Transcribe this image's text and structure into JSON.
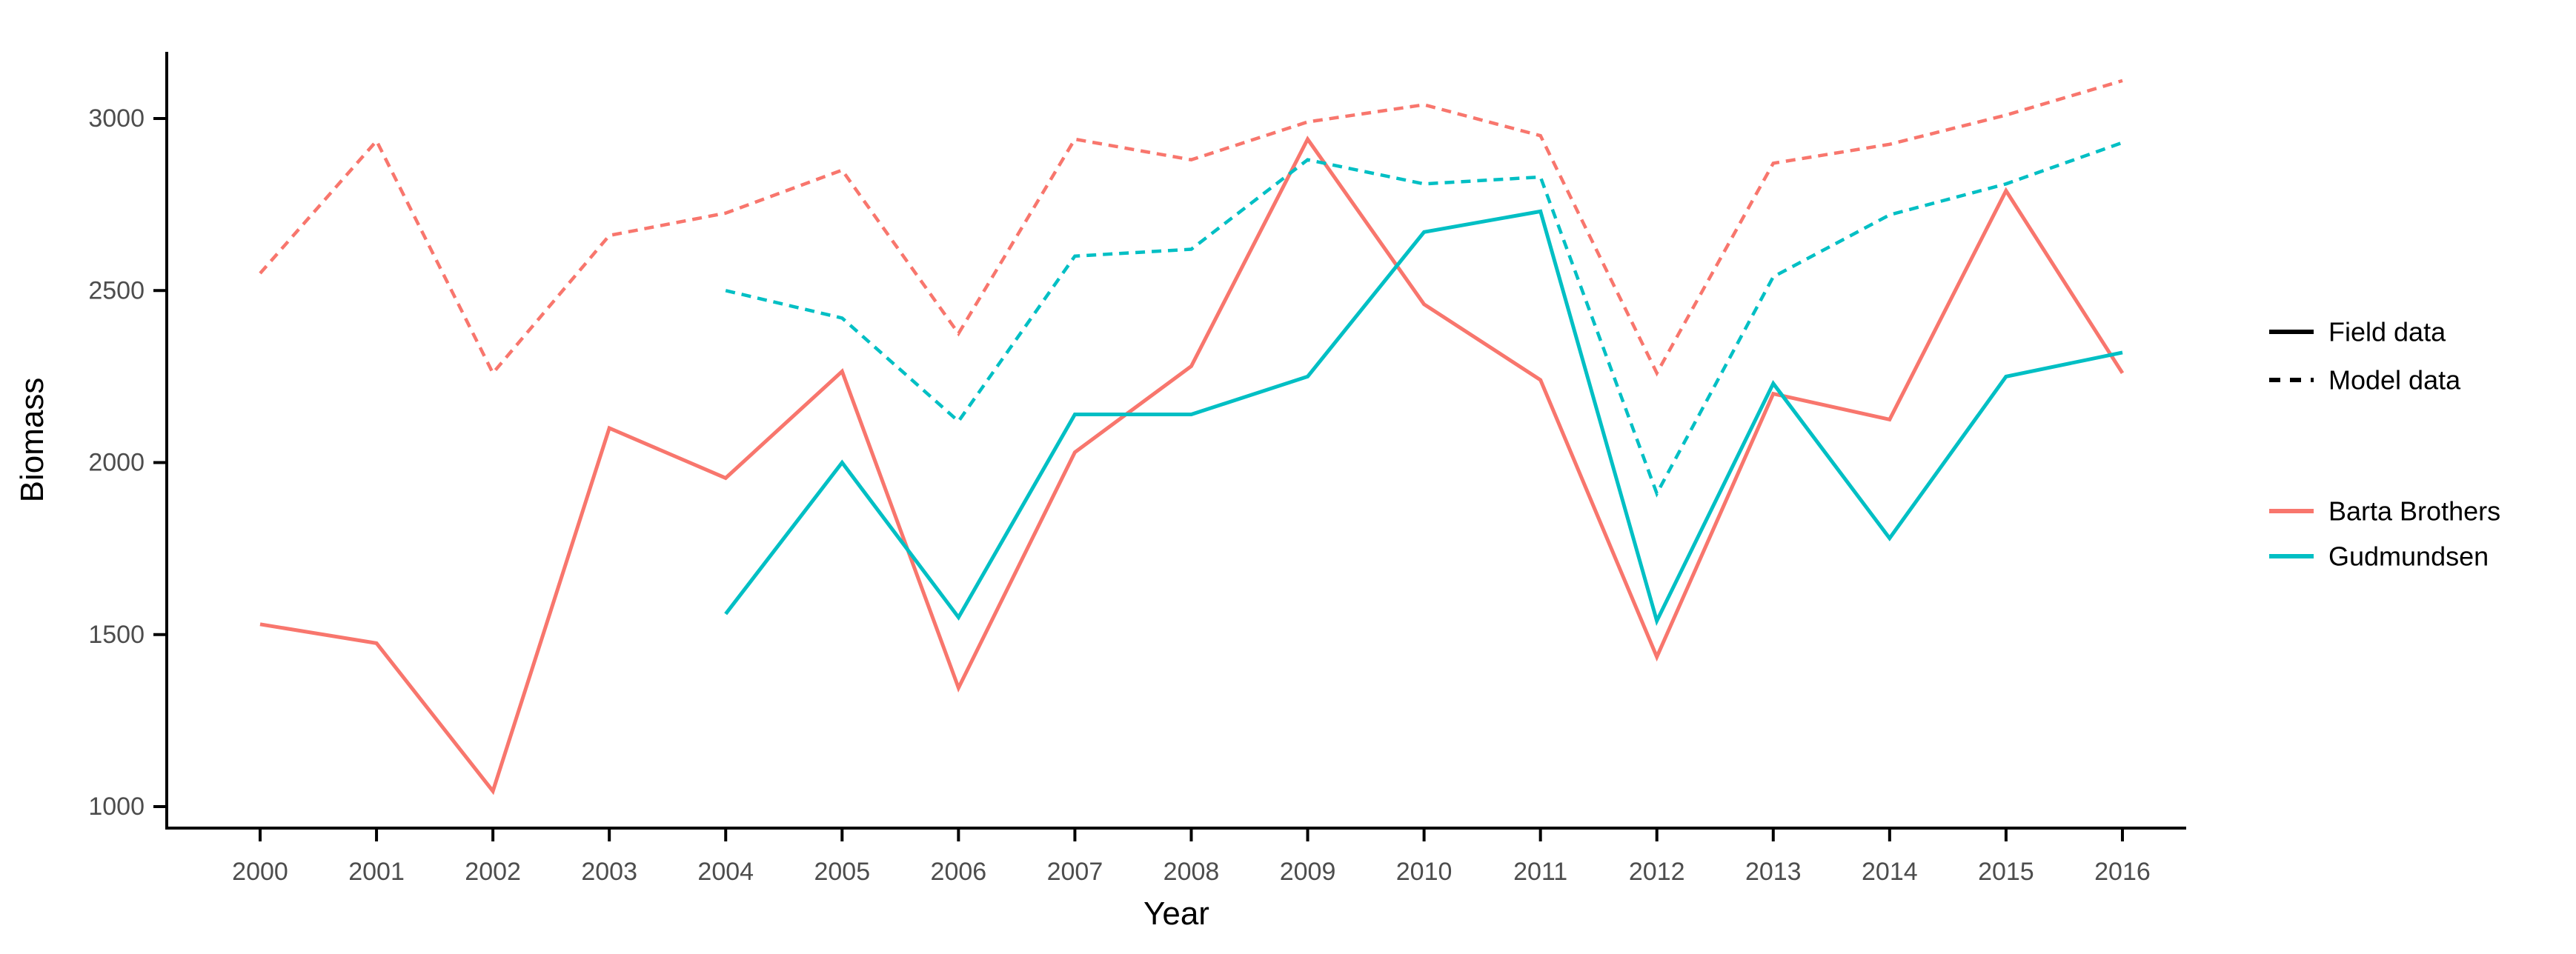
{
  "chart_data": {
    "type": "line",
    "title": "",
    "xlabel": "Year",
    "ylabel": "Biomass",
    "x_ticks": [
      2000,
      2001,
      2002,
      2003,
      2004,
      2005,
      2006,
      2007,
      2008,
      2009,
      2010,
      2011,
      2012,
      2013,
      2014,
      2015,
      2016
    ],
    "y_ticks": [
      1000,
      1500,
      2000,
      2500,
      3000
    ],
    "x_range": [
      2000,
      2016
    ],
    "y_axis_range": [
      940,
      3130
    ],
    "grid": "off",
    "background": "#ffffff",
    "axis_color": "#000000",
    "tick_label_color": "#4d4d4d",
    "series": [
      {
        "name": "Barta Brothers — Field data",
        "ranch": "Barta Brothers",
        "source": "Field data",
        "color": "#F8766D",
        "linetype": "solid",
        "x": [
          2000,
          2001,
          2002,
          2003,
          2004,
          2005,
          2006,
          2007,
          2008,
          2009,
          2010,
          2011,
          2012,
          2013,
          2014,
          2015,
          2016
        ],
        "values": [
          1530,
          1475,
          1045,
          2100,
          1955,
          2265,
          1345,
          2030,
          2280,
          2940,
          2460,
          2240,
          1435,
          2200,
          2125,
          2790,
          2260
        ]
      },
      {
        "name": "Barta Brothers — Model data",
        "ranch": "Barta Brothers",
        "source": "Model data",
        "color": "#F8766D",
        "linetype": "dashed",
        "x": [
          2000,
          2001,
          2002,
          2003,
          2004,
          2005,
          2006,
          2007,
          2008,
          2009,
          2010,
          2011,
          2012,
          2013,
          2014,
          2015,
          2016
        ],
        "values": [
          2550,
          2935,
          2260,
          2660,
          2725,
          2850,
          2375,
          2940,
          2880,
          2990,
          3040,
          2950,
          2260,
          2870,
          2925,
          3010,
          3110
        ]
      },
      {
        "name": "Gudmundsen — Field data",
        "ranch": "Gudmundsen",
        "source": "Field data",
        "color": "#00BFC4",
        "linetype": "solid",
        "x": [
          2004,
          2005,
          2006,
          2007,
          2008,
          2009,
          2010,
          2011,
          2012,
          2013,
          2014,
          2015,
          2016
        ],
        "values": [
          1560,
          2000,
          1550,
          2140,
          2140,
          2250,
          2670,
          2730,
          1540,
          2230,
          1780,
          2250,
          2320
        ]
      },
      {
        "name": "Gudmundsen — Model data",
        "ranch": "Gudmundsen",
        "source": "Model data",
        "color": "#00BFC4",
        "linetype": "dashed",
        "x": [
          2004,
          2005,
          2006,
          2007,
          2008,
          2009,
          2010,
          2011,
          2012,
          2013,
          2014,
          2015,
          2016
        ],
        "values": [
          2500,
          2420,
          2120,
          2600,
          2620,
          2880,
          2810,
          2830,
          1910,
          2540,
          2720,
          2810,
          2930
        ]
      }
    ],
    "legend": {
      "position": "right",
      "linetype_items": [
        {
          "label": "Field data",
          "linetype": "solid",
          "color": "#000000"
        },
        {
          "label": "Model data",
          "linetype": "dashed",
          "color": "#000000"
        }
      ],
      "color_items": [
        {
          "label": "Barta Brothers",
          "color": "#F8766D"
        },
        {
          "label": "Gudmundsen",
          "color": "#00BFC4"
        }
      ]
    }
  }
}
